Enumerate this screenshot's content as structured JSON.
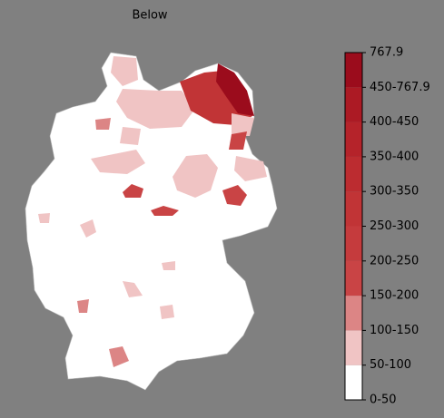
{
  "title": "Below",
  "legend": {
    "labels": [
      "0-50",
      "50-100",
      "100-150",
      "150-200",
      "200-250",
      "250-300",
      "300-350",
      "350-400",
      "400-450",
      "450-767.9",
      "767.9"
    ],
    "colors": [
      "#ffffff",
      "#f0c4c4",
      "#dc8585",
      "#c94445",
      "#c53b3d",
      "#c13436",
      "#bc2c30",
      "#b5232a",
      "#ac1a24",
      "#9b0c1c"
    ]
  }
}
